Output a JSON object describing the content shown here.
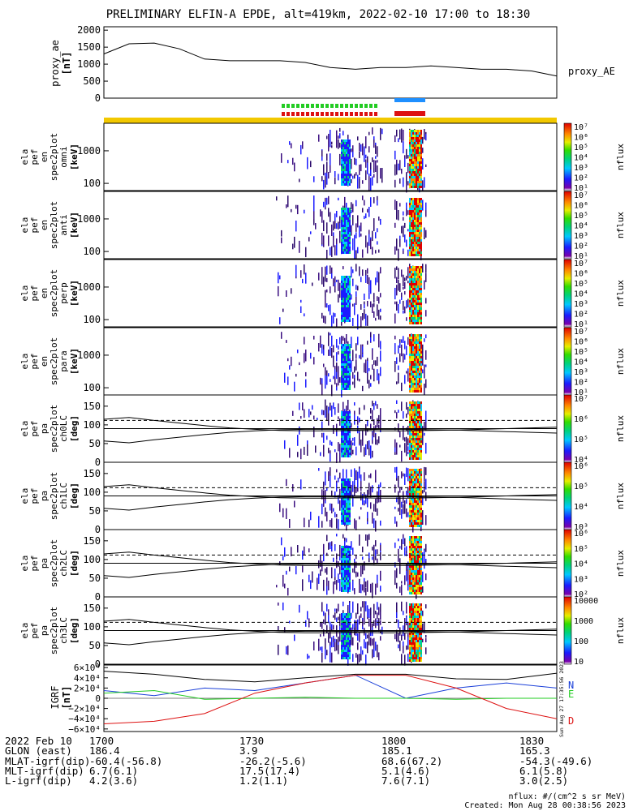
{
  "title": "PRELIMINARY ELFIN-A EPDE, alt=419km, 2022-02-10 17:00 to 18:30",
  "ae_panel": {
    "ylabel": "proxy_ae\n[nT]",
    "yticks": [
      "2000",
      "1500",
      "1000",
      "500",
      "0"
    ],
    "legend": "proxy_AE"
  },
  "spec_panels": [
    {
      "ylabel": [
        "ela",
        "pef",
        "en",
        "spec2plot",
        "omni",
        "[keV]"
      ],
      "yticks": [
        "1000",
        "100"
      ]
    },
    {
      "ylabel": [
        "ela",
        "pef",
        "en",
        "spec2plot",
        "anti",
        "[keV]"
      ],
      "yticks": [
        "1000",
        "100"
      ]
    },
    {
      "ylabel": [
        "ela",
        "pef",
        "en",
        "spec2plot",
        "perp",
        "[keV]"
      ],
      "yticks": [
        "1000",
        "100"
      ]
    },
    {
      "ylabel": [
        "ela",
        "pef",
        "en",
        "spec2plot",
        "para",
        "[keV]"
      ],
      "yticks": [
        "1000",
        "100"
      ]
    },
    {
      "ylabel": [
        "ela",
        "pef",
        "pa",
        "spec2plot",
        "ch0LC",
        "[deg]"
      ],
      "yticks": [
        "150",
        "100",
        "50",
        "0"
      ]
    },
    {
      "ylabel": [
        "ela",
        "pef",
        "pa",
        "spec2plot",
        "ch1LC",
        "[deg]"
      ],
      "yticks": [
        "150",
        "100",
        "50",
        "0"
      ]
    },
    {
      "ylabel": [
        "ela",
        "pef",
        "pa",
        "spec2plot",
        "ch2LC",
        "[deg]"
      ],
      "yticks": [
        "150",
        "100",
        "50",
        "0"
      ]
    },
    {
      "ylabel": [
        "ela",
        "pef",
        "pa",
        "spec2plot",
        "ch3LC",
        "[deg]"
      ],
      "yticks": [
        "150",
        "100",
        "50",
        "0"
      ]
    }
  ],
  "colorbars": [
    {
      "label": "nflux",
      "ticks": [
        "10⁷",
        "10⁶",
        "10⁵",
        "10⁴",
        "10³",
        "10²",
        "10¹"
      ]
    },
    {
      "label": "nflux",
      "ticks": [
        "10⁷",
        "10⁶",
        "10⁵",
        "10⁴",
        "10³",
        "10²",
        "10¹"
      ]
    },
    {
      "label": "nflux",
      "ticks": [
        "10⁷",
        "10⁶",
        "10⁵",
        "10⁴",
        "10³",
        "10²",
        "10¹"
      ]
    },
    {
      "label": "nflux",
      "ticks": [
        "10⁷",
        "10⁶",
        "10⁵",
        "10⁴",
        "10³",
        "10²",
        "10¹"
      ]
    },
    {
      "label": "nflux",
      "ticks": [
        "10⁷",
        "10⁶",
        "10⁵",
        "10⁴"
      ]
    },
    {
      "label": "nflux",
      "ticks": [
        "10⁶",
        "10⁵",
        "10⁴",
        "10³"
      ]
    },
    {
      "label": "nflux",
      "ticks": [
        "10⁶",
        "10⁵",
        "10⁴",
        "10³",
        "10²"
      ]
    },
    {
      "label": "nflux",
      "ticks": [
        "10000",
        "1000",
        "100",
        "10"
      ]
    }
  ],
  "igrf_panel": {
    "ylabel": "IGRF\n[nT]",
    "yticks": [
      "6×10⁴",
      "4×10⁴",
      "2×10⁴",
      "0",
      "−2×10⁴",
      "−4×10⁴",
      "−6×10⁴"
    ],
    "legend": [
      {
        "name": "N",
        "color": "#1a3fd9"
      },
      {
        "name": "E",
        "color": "#22cc22"
      },
      {
        "name": "D",
        "color": "#dd1111"
      }
    ],
    "stamp": "Sun Aug 27 17:35:56 2023"
  },
  "footer": {
    "rows": [
      {
        "label": "2022 Feb 10",
        "values": [
          "1700",
          "1730",
          "1800",
          "1830"
        ]
      },
      {
        "label": "GLON (east)",
        "values": [
          "186.4",
          "3.9",
          "185.1",
          "165.3"
        ]
      },
      {
        "label": "MLAT-igrf(dip)",
        "values": [
          "-60.4(-56.8)",
          "-26.2(-5.6)",
          "68.6(67.2)",
          "-54.3(-49.6)"
        ]
      },
      {
        "label": "MLT-igrf(dip)",
        "values": [
          "6.7(6.1)",
          "17.5(17.4)",
          "5.1(4.6)",
          "6.1(5.8)"
        ]
      },
      {
        "label": "L-igrf(dip)",
        "values": [
          "4.2(3.6)",
          "1.2(1.1)",
          "7.6(7.1)",
          "3.0(2.5)"
        ]
      }
    ],
    "units_note": "nflux: #/(cm^2 s sr MeV)",
    "created": "Created: Mon Aug 28 00:38:56 2023"
  },
  "chart_data": [
    {
      "type": "line",
      "name": "proxy_AE",
      "x_minutes_from_1700": [
        0,
        5,
        10,
        15,
        20,
        25,
        30,
        35,
        40,
        45,
        50,
        55,
        60,
        65,
        70,
        75,
        80,
        85,
        90
      ],
      "y": [
        1300,
        1600,
        1620,
        1450,
        1150,
        1100,
        1100,
        1100,
        1050,
        900,
        850,
        900,
        900,
        950,
        900,
        850,
        850,
        800,
        650
      ],
      "ylim": [
        0,
        2100
      ]
    },
    {
      "type": "heatmap",
      "name": "ela_pef_en_spec2plot_omni",
      "zscale": "log",
      "zlim": [
        10,
        10000000
      ],
      "yscale": "log",
      "ylim": [
        60,
        7000
      ]
    },
    {
      "type": "line",
      "name": "IGRF",
      "x_minutes_from_1700": [
        0,
        10,
        20,
        30,
        40,
        50,
        60,
        70,
        80,
        90
      ],
      "series": [
        {
          "name": "N",
          "color": "#1a3fd9",
          "values": [
            15000,
            5000,
            20000,
            15000,
            30000,
            45000,
            0,
            20000,
            30000,
            20000
          ]
        },
        {
          "name": "E",
          "color": "#22cc22",
          "values": [
            10000,
            15000,
            -2000,
            0,
            2000,
            0,
            0,
            -2000,
            0,
            0
          ]
        },
        {
          "name": "D",
          "color": "#dd1111",
          "values": [
            -50000,
            -45000,
            -30000,
            10000,
            30000,
            45000,
            45000,
            20000,
            -20000,
            -40000
          ]
        },
        {
          "name": "total",
          "color": "#000000",
          "values": [
            53000,
            47000,
            37000,
            32000,
            40000,
            47000,
            47000,
            38000,
            37000,
            49000
          ]
        }
      ],
      "ylim": [
        -65000,
        65000
      ]
    }
  ]
}
